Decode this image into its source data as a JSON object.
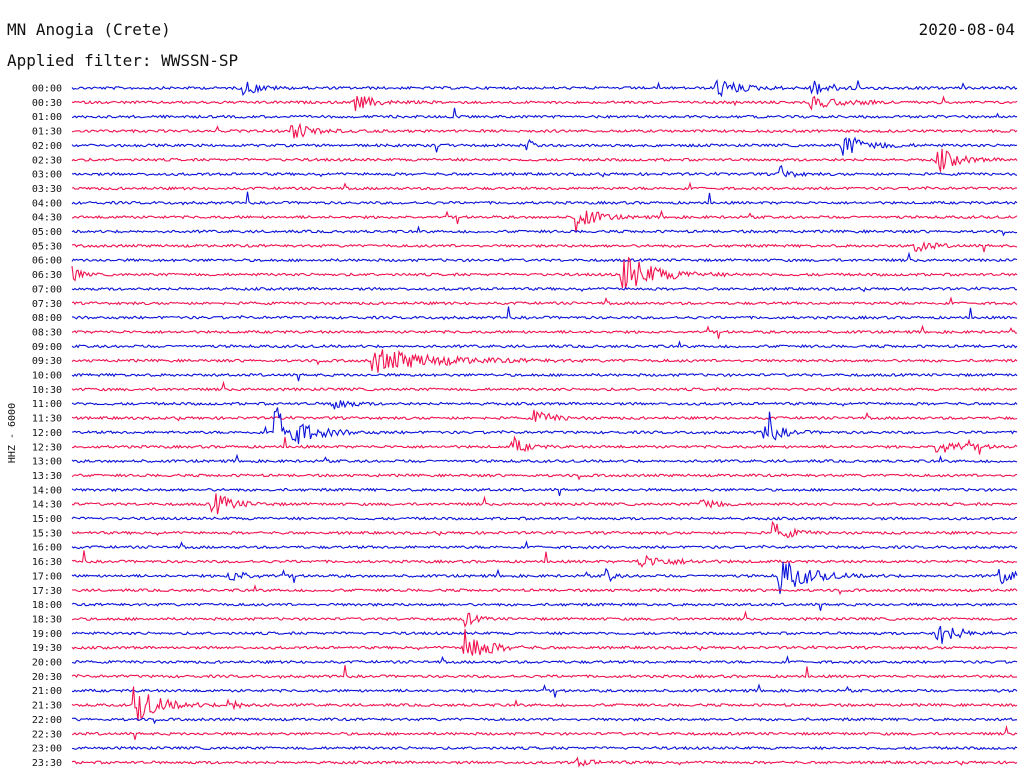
{
  "header": {
    "station": "MN Anogia (Crete)",
    "filter": "Applied filter: WWSSN-SP",
    "date": "2020-08-04",
    "channel_label": "HHZ - 6000"
  },
  "colors": {
    "blue": "#0a12d9",
    "red": "#f0134f"
  },
  "chart_data": {
    "type": "line",
    "title": "MN Anogia (Crete)",
    "subtitle": "Applied filter: WWSSN-SP",
    "ylabel": "HHZ - 6000",
    "xlabel": "",
    "grid": false,
    "legend": "none",
    "rows": [
      "00:00",
      "00:30",
      "01:00",
      "01:30",
      "02:00",
      "02:30",
      "03:00",
      "03:30",
      "04:00",
      "04:30",
      "05:00",
      "05:30",
      "06:00",
      "06:30",
      "07:00",
      "07:30",
      "08:00",
      "08:30",
      "09:00",
      "09:30",
      "10:00",
      "10:30",
      "11:00",
      "11:30",
      "12:00",
      "12:30",
      "13:00",
      "13:30",
      "14:00",
      "14:30",
      "15:00",
      "15:30",
      "16:00",
      "16:30",
      "17:00",
      "17:30",
      "18:00",
      "18:30",
      "19:00",
      "19:30",
      "20:00",
      "20:30",
      "21:00",
      "21:30",
      "22:00",
      "22:30",
      "23:00",
      "23:30"
    ],
    "row_colors": [
      "blue",
      "red"
    ],
    "minutes_per_row": 30,
    "events": [
      {
        "row": 0,
        "minute": 5.5,
        "amp": 0.9,
        "dur": 1.2
      },
      {
        "row": 0,
        "minute": 20.5,
        "amp": 1.2,
        "dur": 1.8
      },
      {
        "row": 0,
        "minute": 23.5,
        "amp": 1.0,
        "dur": 1.5
      },
      {
        "row": 1,
        "minute": 9.0,
        "amp": 1.0,
        "dur": 1.5
      },
      {
        "row": 1,
        "minute": 23.5,
        "amp": 0.7,
        "dur": 2.5
      },
      {
        "row": 3,
        "minute": 7.0,
        "amp": 1.1,
        "dur": 1.5
      },
      {
        "row": 4,
        "minute": 14.5,
        "amp": 0.6,
        "dur": 0.5
      },
      {
        "row": 4,
        "minute": 24.5,
        "amp": 1.3,
        "dur": 2.0
      },
      {
        "row": 5,
        "minute": 27.5,
        "amp": 1.6,
        "dur": 1.5
      },
      {
        "row": 6,
        "minute": 22.5,
        "amp": 1.0,
        "dur": 0.8
      },
      {
        "row": 9,
        "minute": 16.0,
        "amp": 1.8,
        "dur": 1.5
      },
      {
        "row": 11,
        "minute": 26.8,
        "amp": 0.9,
        "dur": 1.2
      },
      {
        "row": 13,
        "minute": 0.0,
        "amp": 1.6,
        "dur": 0.5
      },
      {
        "row": 13,
        "minute": 17.5,
        "amp": 2.6,
        "dur": 2.5
      },
      {
        "row": 19,
        "minute": 9.6,
        "amp": 1.5,
        "dur": 5.0
      },
      {
        "row": 22,
        "minute": 8.3,
        "amp": 1.0,
        "dur": 1.0
      },
      {
        "row": 23,
        "minute": 14.7,
        "amp": 0.9,
        "dur": 1.5
      },
      {
        "row": 24,
        "minute": 6.5,
        "amp": 3.5,
        "dur": 2.0
      },
      {
        "row": 24,
        "minute": 22.0,
        "amp": 1.7,
        "dur": 1.2
      },
      {
        "row": 25,
        "minute": 14.0,
        "amp": 1.2,
        "dur": 1.0
      },
      {
        "row": 25,
        "minute": 27.5,
        "amp": 1.0,
        "dur": 2.0
      },
      {
        "row": 29,
        "minute": 4.5,
        "amp": 1.5,
        "dur": 1.5
      },
      {
        "row": 29,
        "minute": 20.0,
        "amp": 1.0,
        "dur": 1.0
      },
      {
        "row": 31,
        "minute": 22.3,
        "amp": 1.2,
        "dur": 1.3
      },
      {
        "row": 33,
        "minute": 18.0,
        "amp": 0.8,
        "dur": 2.5
      },
      {
        "row": 34,
        "minute": 5.0,
        "amp": 0.8,
        "dur": 1.5
      },
      {
        "row": 34,
        "minute": 17.0,
        "amp": 1.0,
        "dur": 0.5
      },
      {
        "row": 34,
        "minute": 22.5,
        "amp": 2.3,
        "dur": 2.2
      },
      {
        "row": 34,
        "minute": 29.5,
        "amp": 1.2,
        "dur": 1.0
      },
      {
        "row": 37,
        "minute": 12.5,
        "amp": 0.9,
        "dur": 0.8
      },
      {
        "row": 38,
        "minute": 27.5,
        "amp": 1.6,
        "dur": 1.5
      },
      {
        "row": 39,
        "minute": 12.5,
        "amp": 2.6,
        "dur": 1.5
      },
      {
        "row": 43,
        "minute": 2.0,
        "amp": 2.3,
        "dur": 2.0
      },
      {
        "row": 43,
        "minute": 5.0,
        "amp": 0.8,
        "dur": 1.0
      },
      {
        "row": 47,
        "minute": 16.0,
        "amp": 0.5,
        "dur": 1.5
      }
    ]
  }
}
